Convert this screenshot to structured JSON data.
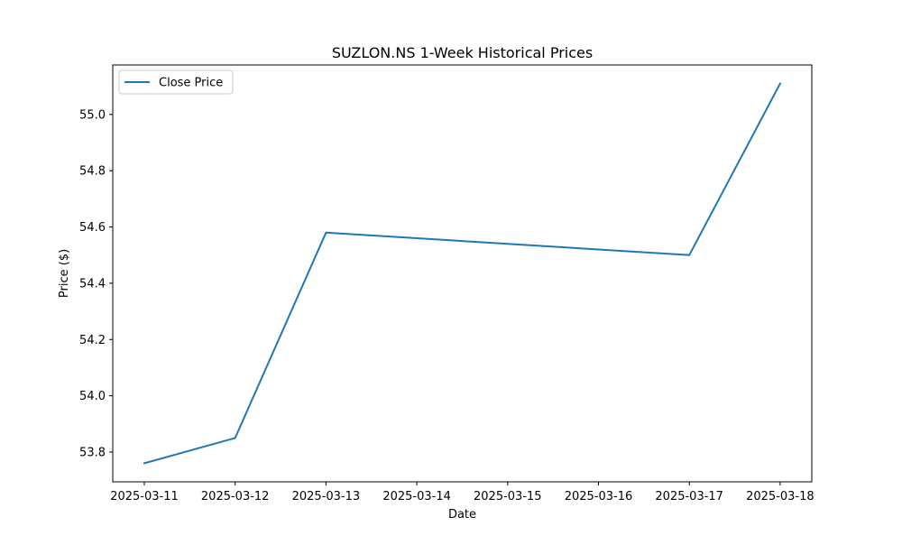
{
  "chart_data": {
    "type": "line",
    "title": "SUZLON.NS 1-Week Historical Prices",
    "xlabel": "Date",
    "ylabel": "Price ($)",
    "x_ticks": [
      "2025-03-11",
      "2025-03-12",
      "2025-03-13",
      "2025-03-14",
      "2025-03-15",
      "2025-03-16",
      "2025-03-17",
      "2025-03-18"
    ],
    "y_ticks": [
      "53.8",
      "54.0",
      "54.2",
      "54.4",
      "54.6",
      "54.8",
      "55.0"
    ],
    "ylim": [
      53.694,
      55.176
    ],
    "grid": false,
    "legend_position": "top-left",
    "series": [
      {
        "name": "Close Price",
        "color": "#1f77b4",
        "points": [
          {
            "x": "2025-03-11",
            "y": 53.76
          },
          {
            "x": "2025-03-12",
            "y": 53.85
          },
          {
            "x": "2025-03-13",
            "y": 54.58
          },
          {
            "x": "2025-03-17",
            "y": 54.5
          },
          {
            "x": "2025-03-18",
            "y": 55.11
          }
        ]
      }
    ]
  }
}
